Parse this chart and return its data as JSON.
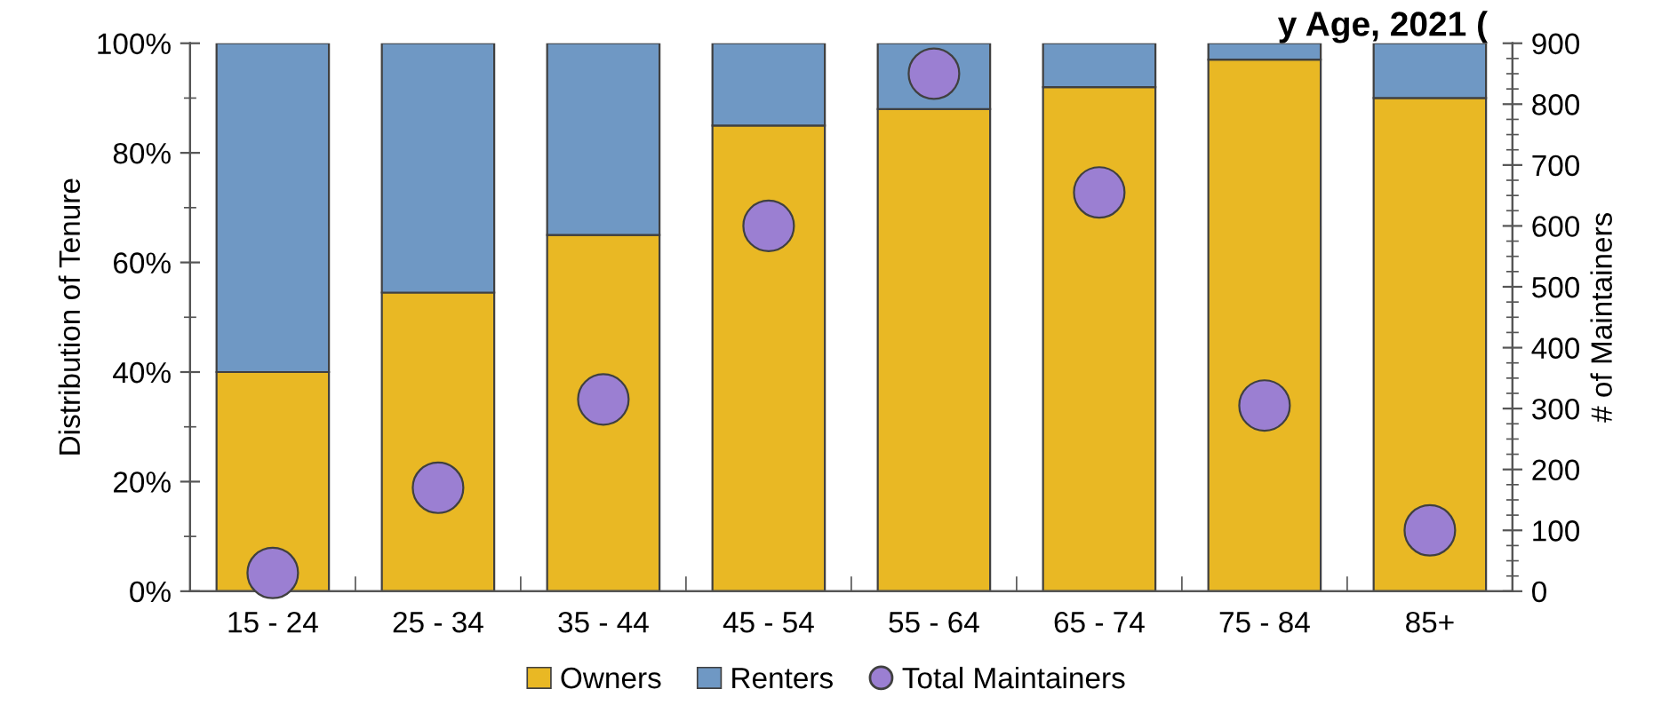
{
  "chart_data": {
    "type": "bar",
    "title": "y Age, 2021 (",
    "ylabel": "Distribution of Tenure",
    "y2label": "# of Maintainers",
    "categories": [
      "15 - 24",
      "25 - 34",
      "35 - 44",
      "45 - 54",
      "55 - 64",
      "65 - 74",
      "75 - 84",
      "85+"
    ],
    "stacked": true,
    "series": [
      {
        "name": "Owners",
        "color": "#e9b824",
        "values": [
          40,
          54.5,
          65,
          85,
          88,
          92,
          97,
          90
        ]
      },
      {
        "name": "Renters",
        "color": "#6f98c4",
        "values": [
          60,
          45.5,
          35,
          15,
          12,
          8,
          3,
          10
        ]
      },
      {
        "name": "Total Maintainers",
        "type": "scatter",
        "axis": "y2",
        "color": "#9b7fd2",
        "values": [
          30,
          170,
          315,
          600,
          850,
          655,
          305,
          100
        ]
      }
    ],
    "ylim": [
      0,
      100
    ],
    "yticks": [
      {
        "value": 0,
        "label": "0%"
      },
      {
        "value": 20,
        "label": "20%"
      },
      {
        "value": 40,
        "label": "40%"
      },
      {
        "value": 60,
        "label": "60%"
      },
      {
        "value": 80,
        "label": "80%"
      },
      {
        "value": 100,
        "label": "100%"
      }
    ],
    "y2lim": [
      0,
      900
    ],
    "y2ticks": [
      0,
      100,
      200,
      300,
      400,
      500,
      600,
      700,
      800,
      900
    ],
    "marker": "circle",
    "grid": false,
    "legend": "bottom"
  }
}
